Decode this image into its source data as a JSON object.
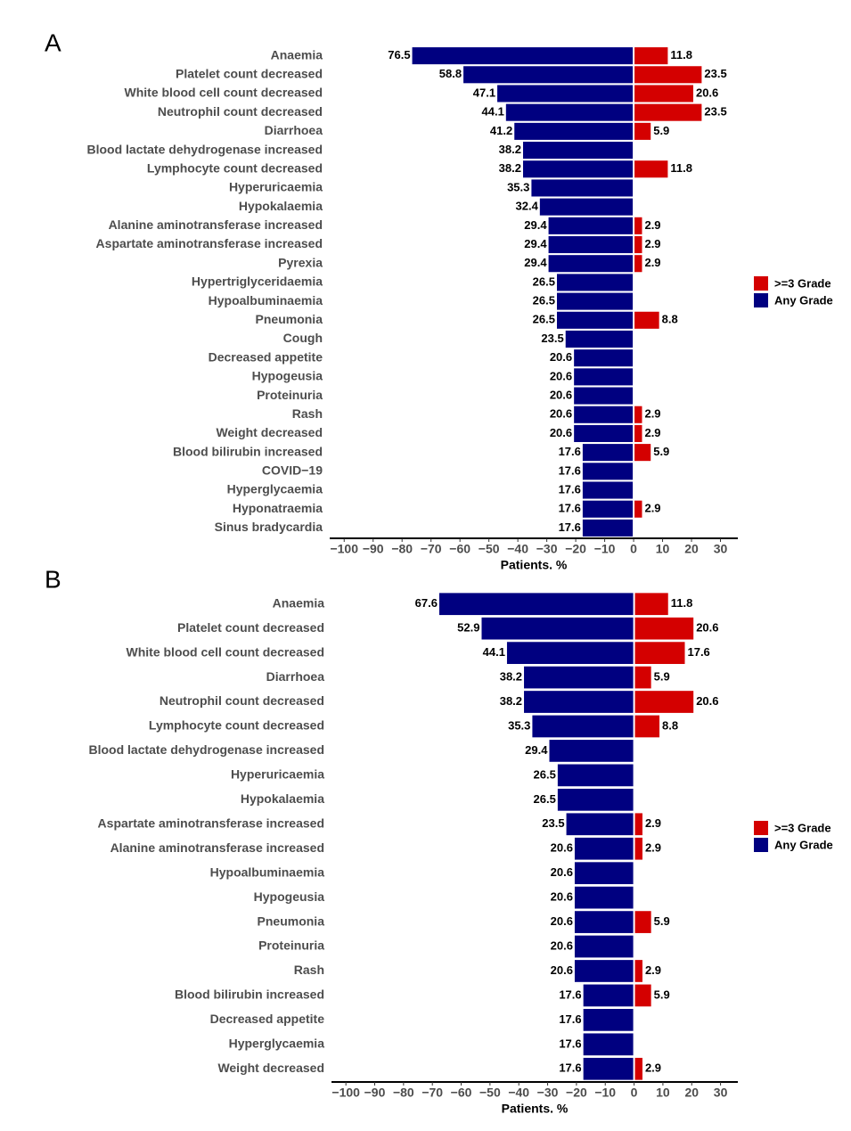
{
  "chart_data": [
    {
      "type": "bar",
      "orientation": "horizontal",
      "label": "A",
      "categories": [
        "Anaemia",
        "Platelet count decreased",
        "White blood cell count decreased",
        "Neutrophil count decreased",
        "Diarrhoea",
        "Blood lactate dehydrogenase increased",
        "Lymphocyte count decreased",
        "Hyperuricaemia",
        "Hypokalaemia",
        "Alanine aminotransferase increased",
        "Aspartate aminotransferase increased",
        "Pyrexia",
        "Hypertriglyceridaemia",
        "Hypoalbuminaemia",
        "Pneumonia",
        "Cough",
        "Decreased appetite",
        "Hypogeusia",
        "Proteinuria",
        "Rash",
        "Weight decreased",
        "Blood bilirubin increased",
        "COVID−19",
        "Hyperglycaemia",
        "Hyponatraemia",
        "Sinus bradycardia"
      ],
      "series": [
        {
          "name": ">=3 Grade",
          "color": "#d40000",
          "values": [
            11.8,
            23.5,
            20.6,
            23.5,
            5.9,
            null,
            11.8,
            null,
            null,
            2.9,
            2.9,
            2.9,
            null,
            null,
            8.8,
            null,
            null,
            null,
            null,
            2.9,
            2.9,
            5.9,
            null,
            null,
            2.9,
            null
          ]
        },
        {
          "name": "Any Grade",
          "color": "#000080",
          "values": [
            -76.5,
            -58.8,
            -47.1,
            -44.1,
            -41.2,
            -38.2,
            -38.2,
            -35.3,
            -32.4,
            -29.4,
            -29.4,
            -29.4,
            -26.5,
            -26.5,
            -26.5,
            -23.5,
            -20.6,
            -20.6,
            -20.6,
            -20.6,
            -20.6,
            -17.6,
            -17.6,
            -17.6,
            -17.6,
            -17.6
          ],
          "value_labels": [
            "76.5",
            "58.8",
            "47.1",
            "44.1",
            "41.2",
            "38.2",
            "38.2",
            "35.3",
            "32.4",
            "29.4",
            "29.4",
            "29.4",
            "26.5",
            "26.5",
            "26.5",
            "23.5",
            "20.6",
            "20.6",
            "20.6",
            "20.6",
            "20.6",
            "17.6",
            "17.6",
            "17.6",
            "17.6",
            "17.6"
          ]
        }
      ],
      "xlim": [
        -105,
        36
      ],
      "xticks": [
        {
          "value": -100,
          "label": "−100"
        },
        {
          "value": -90,
          "label": "−90"
        },
        {
          "value": -80,
          "label": "−80"
        },
        {
          "value": -70,
          "label": "−70"
        },
        {
          "value": -60,
          "label": "−60"
        },
        {
          "value": -50,
          "label": "−50"
        },
        {
          "value": -40,
          "label": "−40"
        },
        {
          "value": -30,
          "label": "−30"
        },
        {
          "value": -20,
          "label": "−20"
        },
        {
          "value": -10,
          "label": "−10"
        },
        0,
        10,
        20,
        30
      ],
      "x_label": "Patients. %",
      "legend": "right"
    },
    {
      "type": "bar",
      "orientation": "horizontal",
      "label": "B",
      "categories": [
        "Anaemia",
        "Platelet count decreased",
        "White blood cell count decreased",
        "Diarrhoea",
        "Neutrophil count decreased",
        "Lymphocyte count decreased",
        "Blood lactate dehydrogenase increased",
        "Hyperuricaemia",
        "Hypokalaemia",
        "Aspartate aminotransferase increased",
        "Alanine aminotransferase increased",
        "Hypoalbuminaemia",
        "Hypogeusia",
        "Pneumonia",
        "Proteinuria",
        "Rash",
        "Blood bilirubin increased",
        "Decreased appetite",
        "Hyperglycaemia",
        "Weight decreased"
      ],
      "series": [
        {
          "name": ">=3 Grade",
          "color": "#d40000",
          "values": [
            11.8,
            20.6,
            17.6,
            5.9,
            20.6,
            8.8,
            null,
            null,
            null,
            2.9,
            2.9,
            null,
            null,
            5.9,
            null,
            2.9,
            5.9,
            null,
            null,
            2.9
          ]
        },
        {
          "name": "Any Grade",
          "color": "#000080",
          "values": [
            -67.6,
            -52.9,
            -44.1,
            -38.2,
            -38.2,
            -35.3,
            -29.4,
            -26.5,
            -26.5,
            -23.5,
            -20.6,
            -20.6,
            -20.6,
            -20.6,
            -20.6,
            -20.6,
            -17.6,
            -17.6,
            -17.6,
            -17.6
          ],
          "value_labels": [
            "67.6",
            "52.9",
            "44.1",
            "38.2",
            "38.2",
            "35.3",
            "29.4",
            "26.5",
            "26.5",
            "23.5",
            "20.6",
            "20.6",
            "20.6",
            "20.6",
            "20.6",
            "20.6",
            "17.6",
            "17.6",
            "17.6",
            "17.6"
          ]
        }
      ],
      "xlim": [
        -105,
        36
      ],
      "xticks": [
        {
          "value": -100,
          "label": "−100"
        },
        {
          "value": -90,
          "label": "−90"
        },
        {
          "value": -80,
          "label": "−80"
        },
        {
          "value": -70,
          "label": "−70"
        },
        {
          "value": -60,
          "label": "−60"
        },
        {
          "value": -50,
          "label": "−50"
        },
        {
          "value": -40,
          "label": "−40"
        },
        {
          "value": -30,
          "label": "−30"
        },
        {
          "value": -20,
          "label": "−20"
        },
        {
          "value": -10,
          "label": "−10"
        },
        0,
        10,
        20,
        30
      ],
      "x_label": "Patients. %",
      "legend": "right"
    }
  ]
}
